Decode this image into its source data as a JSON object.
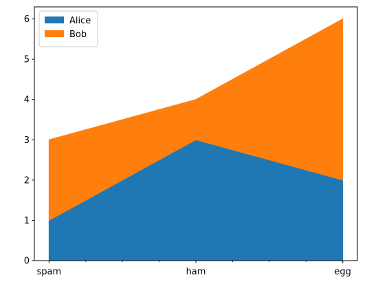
{
  "chart_data": {
    "type": "area",
    "stacked": true,
    "categories": [
      "spam",
      "ham",
      "egg"
    ],
    "x_minor_ticks": true,
    "series": [
      {
        "name": "Alice",
        "values": [
          1,
          3,
          2
        ],
        "color": "#1f77b4"
      },
      {
        "name": "Bob",
        "values": [
          2,
          1,
          4
        ],
        "color": "#ff7f0e"
      }
    ],
    "ylim": [
      0,
      6.3
    ],
    "yticks": [
      0,
      1,
      2,
      3,
      4,
      5,
      6
    ],
    "legend": "top-left",
    "grid": false
  }
}
